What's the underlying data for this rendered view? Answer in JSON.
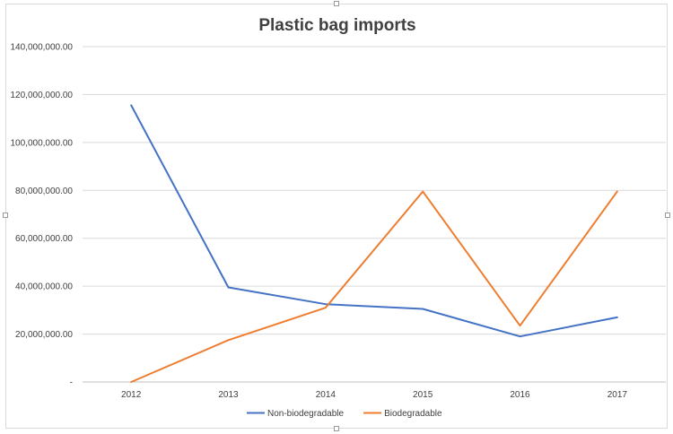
{
  "chart_data": {
    "type": "line",
    "title": "Plastic bag imports",
    "xlabel": "",
    "ylabel": "",
    "categories": [
      "2012",
      "2013",
      "2014",
      "2015",
      "2016",
      "2017"
    ],
    "ylim": [
      0,
      140000000
    ],
    "yticks": [
      0,
      20000000,
      40000000,
      60000000,
      80000000,
      100000000,
      120000000,
      140000000
    ],
    "ytick_labels": [
      "-",
      "20,000,000.00",
      "40,000,000.00",
      "60,000,000.00",
      "80,000,000.00",
      "100,000,000.00",
      "120,000,000.00",
      "140,000,000.00"
    ],
    "grid": true,
    "legend_position": "bottom",
    "series": [
      {
        "name": "Non-biodegradable",
        "color": "#4472c4",
        "values": [
          115500000,
          39500000,
          32500000,
          30500000,
          19000000,
          27000000
        ]
      },
      {
        "name": "Biodegradable",
        "color": "#ed7d31",
        "values": [
          0,
          17500000,
          31000000,
          79500000,
          23500000,
          79500000
        ]
      }
    ]
  }
}
